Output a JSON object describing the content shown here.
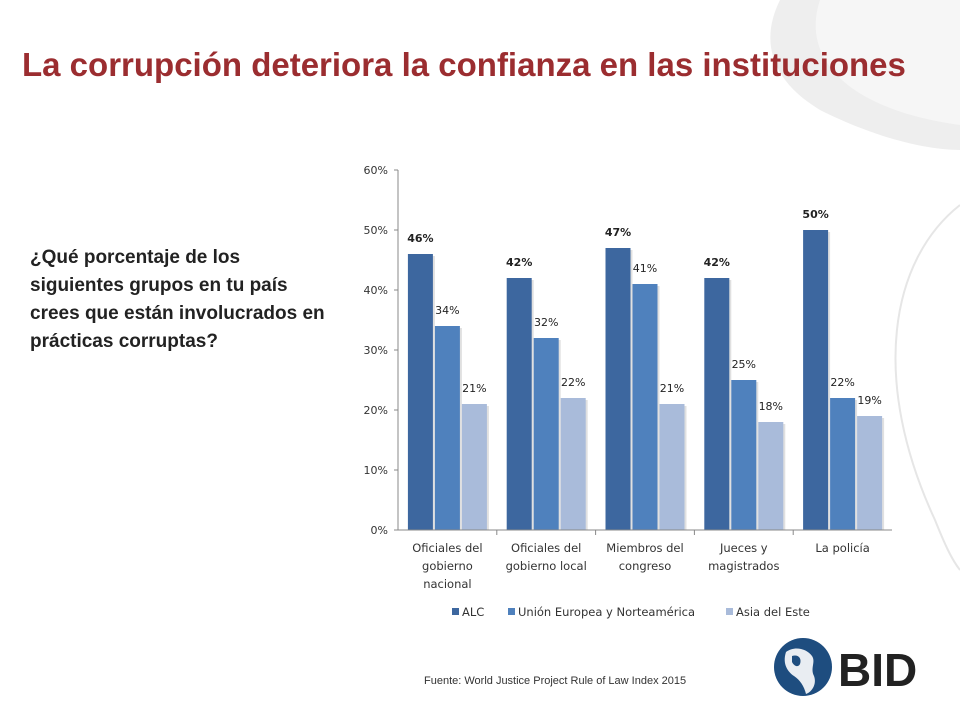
{
  "slide": {
    "title": "La corrupción deteriora la confianza en las instituciones",
    "question": "¿Qué porcentaje de los siguientes grupos en tu país crees que están involucrados en prácticas corruptas?",
    "source": "Fuente: World Justice Project Rule of Law Index 2015",
    "logo_text": "BID"
  },
  "colors": {
    "title": "#9b2d30",
    "series": [
      "#3d679f",
      "#4f81bd",
      "#a9bbda"
    ]
  },
  "chart_data": {
    "type": "bar",
    "categories": [
      [
        "Oficiales del",
        "gobierno",
        "nacional"
      ],
      [
        "Oficiales del",
        "gobierno local"
      ],
      [
        "Miembros del",
        "congreso"
      ],
      [
        "Jueces y",
        "magistrados"
      ],
      [
        "La policía"
      ]
    ],
    "series": [
      {
        "name": "ALC",
        "values": [
          46,
          42,
          47,
          42,
          50
        ],
        "labels": [
          "46%",
          "42%",
          "47%",
          "42%",
          "50%"
        ],
        "bold_labels": true
      },
      {
        "name": "Unión Europea y Norteamérica",
        "values": [
          34,
          32,
          41,
          25,
          22
        ],
        "labels": [
          "34%",
          "32%",
          "41%",
          "25%",
          "22%"
        ],
        "bold_labels": false
      },
      {
        "name": "Asia del Este",
        "values": [
          21,
          22,
          21,
          18,
          19
        ],
        "labels": [
          "21%",
          "22%",
          "21%",
          "18%",
          "19%"
        ],
        "bold_labels": false
      }
    ],
    "yticks": [
      "0%",
      "10%",
      "20%",
      "30%",
      "40%",
      "50%",
      "60%"
    ],
    "ylim": [
      0,
      60
    ],
    "grid": false,
    "legend": "bottom"
  }
}
